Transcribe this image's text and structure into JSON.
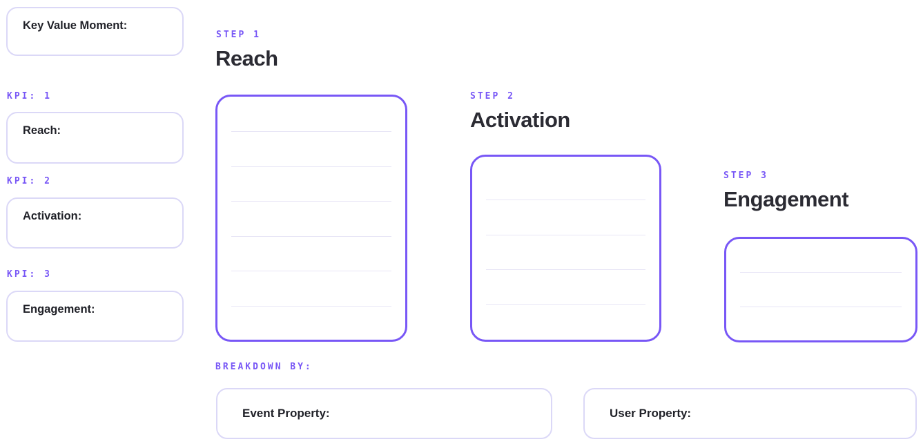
{
  "colors": {
    "accent_purple": "#7857F6",
    "soft_border": "#DBD8F7",
    "rule_line": "#E7E5F6",
    "heading_text": "#2B2B33",
    "label_text": "#202128",
    "background": "#FFFFFF"
  },
  "sidebar": {
    "key_value_box": {
      "label": "Key Value Moment:"
    },
    "kpis": [
      {
        "kpi_label": "KPI: 1",
        "box_label": "Reach:"
      },
      {
        "kpi_label": "KPI: 2",
        "box_label": "Activation:"
      },
      {
        "kpi_label": "KPI: 3",
        "box_label": "Engagement:"
      }
    ]
  },
  "funnel": {
    "steps": [
      {
        "step_label": "STEP 1",
        "title": "Reach",
        "note_lines": 6
      },
      {
        "step_label": "STEP 2",
        "title": "Activation",
        "note_lines": 4
      },
      {
        "step_label": "STEP 3",
        "title": "Engagement",
        "note_lines": 2
      }
    ],
    "breakdown_label": "BREAKDOWN BY:",
    "breakdown_boxes": [
      {
        "label": "Event Property:"
      },
      {
        "label": "User Property:"
      }
    ]
  }
}
